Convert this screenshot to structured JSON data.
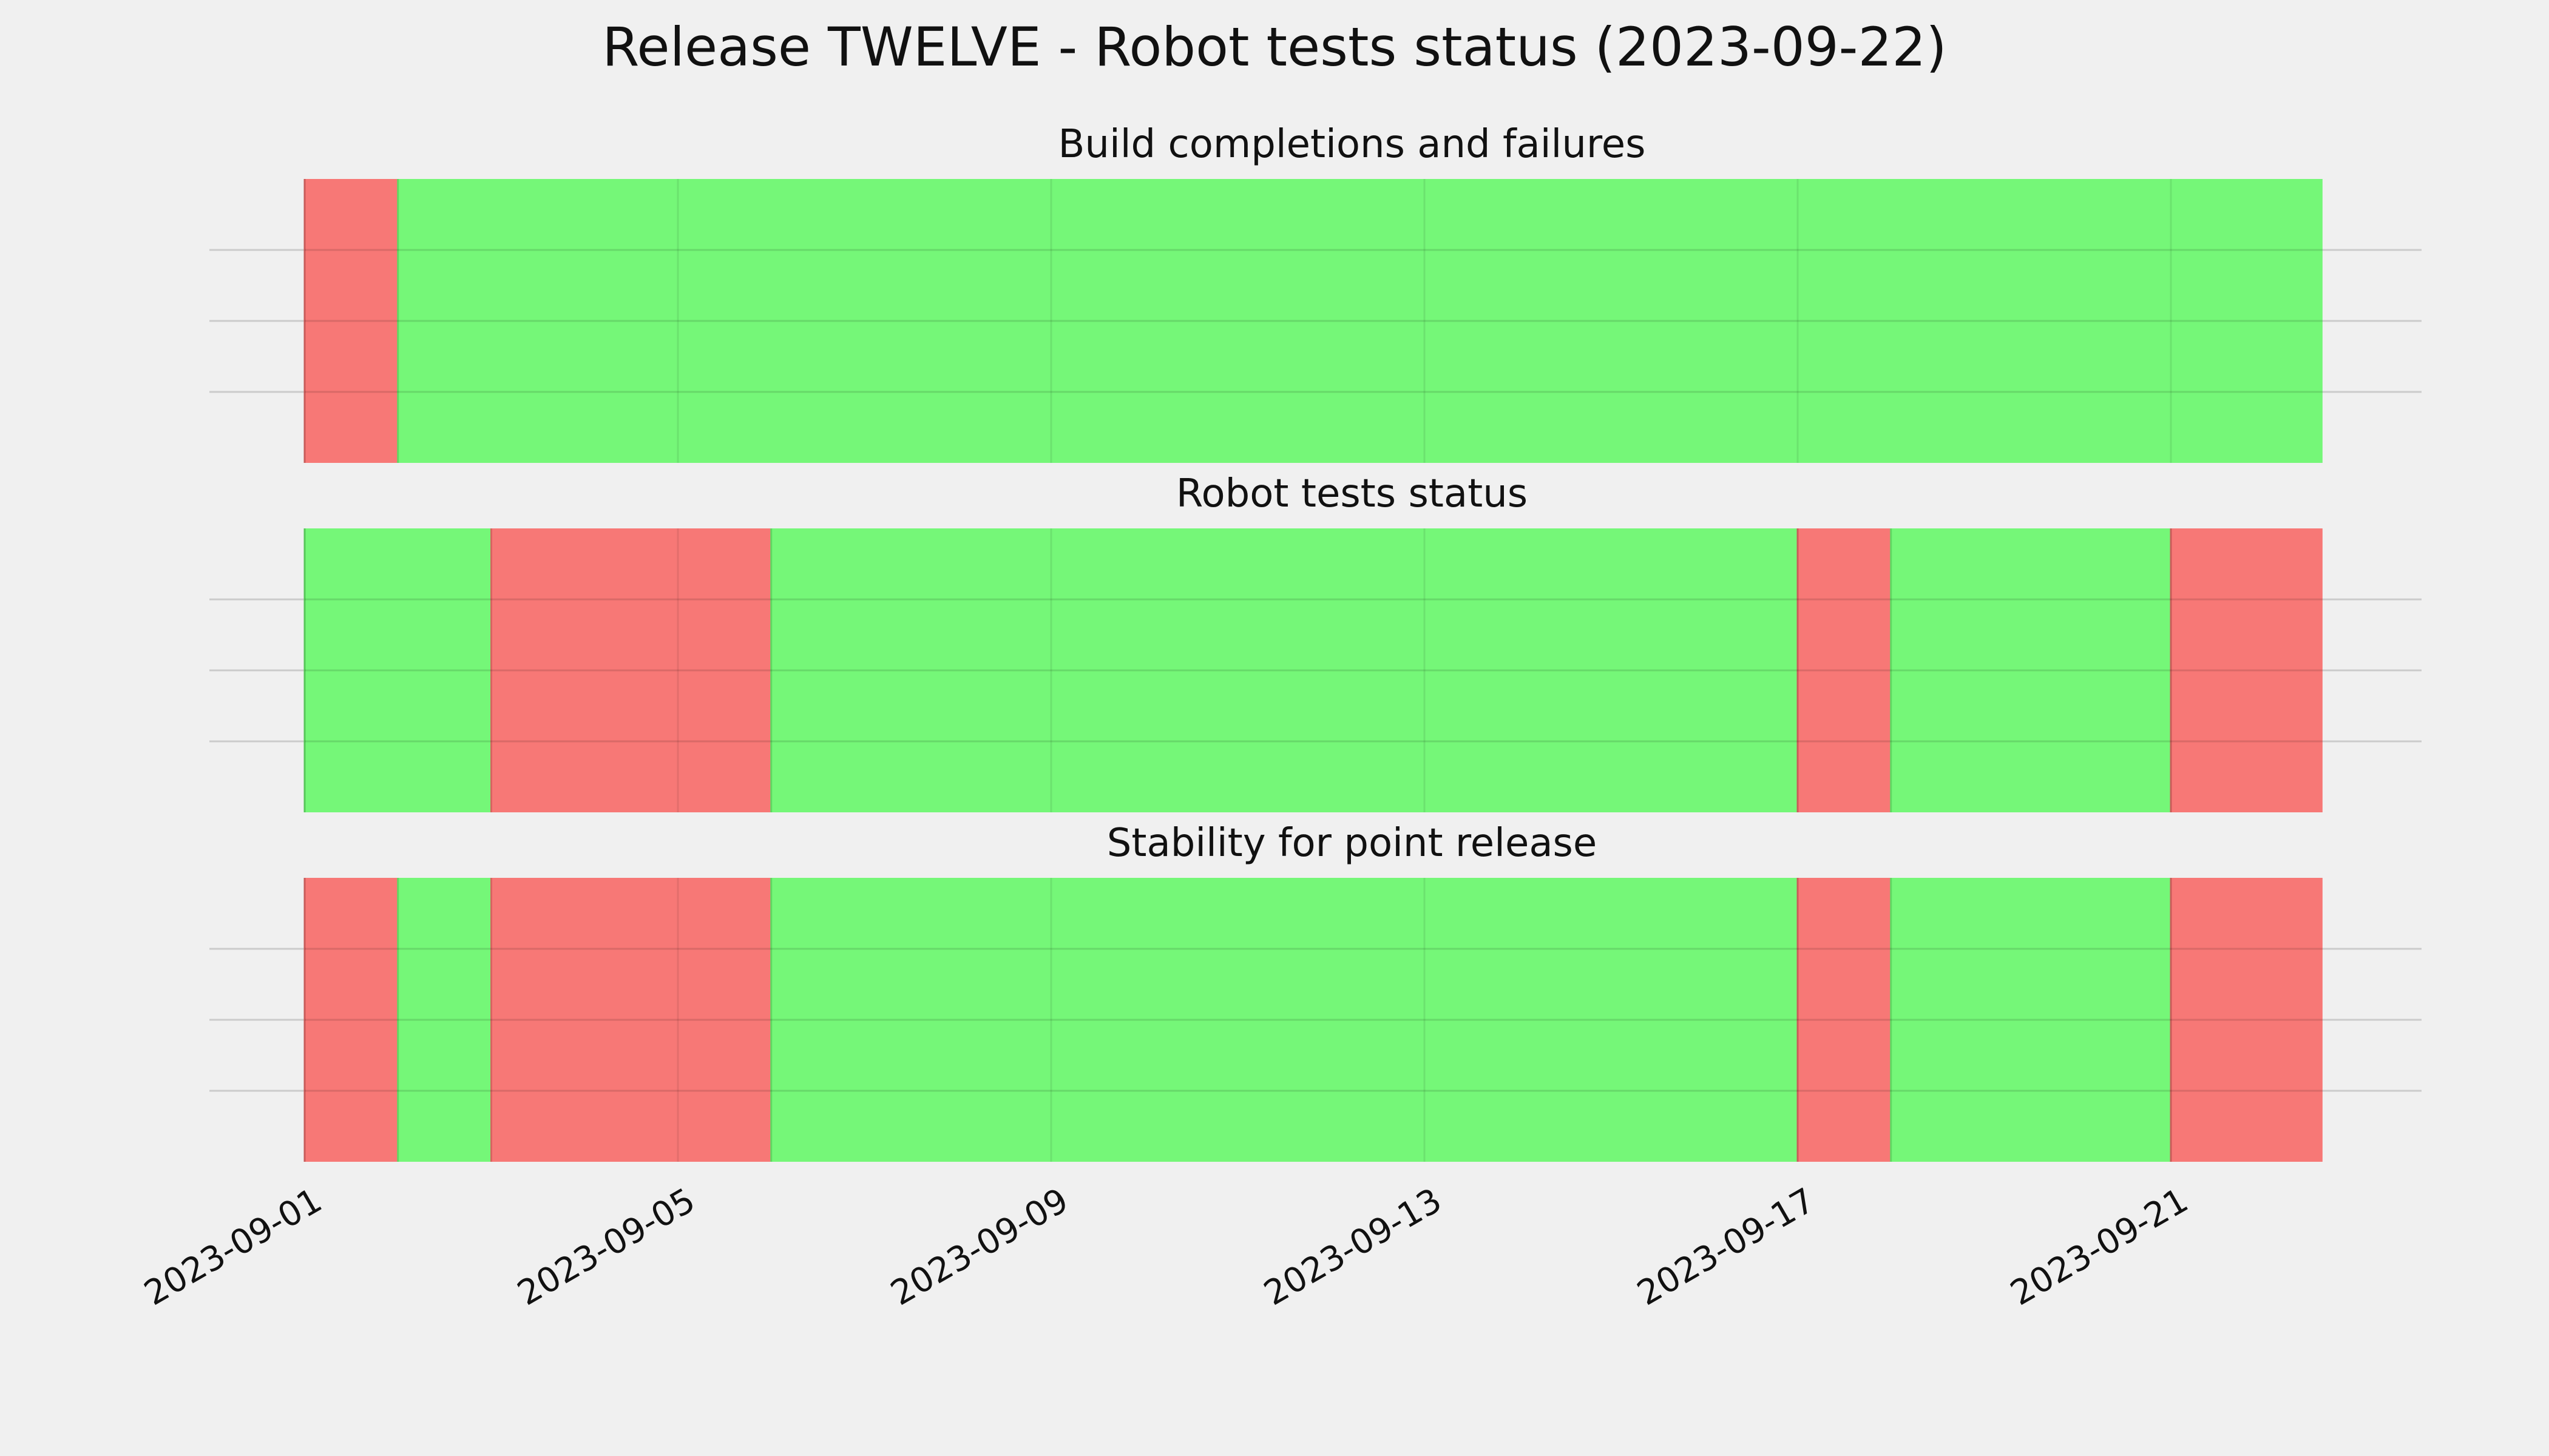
{
  "title": "Release TWELVE - Robot tests status (2023-09-22)",
  "colors": {
    "background": "#f0f0f0",
    "pass": "#75f778",
    "fail": "#f77876",
    "grid": "#cbcbcb"
  },
  "chart_data": {
    "type": "timeline",
    "x_range": [
      "2023-09-01",
      "2023-09-23"
    ],
    "x_ticks": [
      "2023-09-01",
      "2023-09-05",
      "2023-09-09",
      "2023-09-13",
      "2023-09-17",
      "2023-09-21"
    ],
    "legend": false,
    "grid": true,
    "panels": [
      {
        "title": "Build completions and failures",
        "segments": [
          {
            "start": "2023-09-01",
            "end": "2023-09-02",
            "status": "fail"
          },
          {
            "start": "2023-09-02",
            "end": "2023-09-22 15:00",
            "status": "pass"
          }
        ]
      },
      {
        "title": "Robot tests status",
        "segments": [
          {
            "start": "2023-09-01",
            "end": "2023-09-03",
            "status": "pass"
          },
          {
            "start": "2023-09-03",
            "end": "2023-09-06",
            "status": "fail"
          },
          {
            "start": "2023-09-06",
            "end": "2023-09-17",
            "status": "pass"
          },
          {
            "start": "2023-09-17",
            "end": "2023-09-18",
            "status": "fail"
          },
          {
            "start": "2023-09-18",
            "end": "2023-09-21",
            "status": "pass"
          },
          {
            "start": "2023-09-21",
            "end": "2023-09-22 15:00",
            "status": "fail"
          }
        ]
      },
      {
        "title": "Stability for point release",
        "segments": [
          {
            "start": "2023-09-01",
            "end": "2023-09-02",
            "status": "fail"
          },
          {
            "start": "2023-09-02",
            "end": "2023-09-03",
            "status": "pass"
          },
          {
            "start": "2023-09-03",
            "end": "2023-09-06",
            "status": "fail"
          },
          {
            "start": "2023-09-06",
            "end": "2023-09-17",
            "status": "pass"
          },
          {
            "start": "2023-09-17",
            "end": "2023-09-18",
            "status": "fail"
          },
          {
            "start": "2023-09-18",
            "end": "2023-09-21",
            "status": "pass"
          },
          {
            "start": "2023-09-21",
            "end": "2023-09-22 15:00",
            "status": "fail"
          }
        ]
      }
    ]
  }
}
